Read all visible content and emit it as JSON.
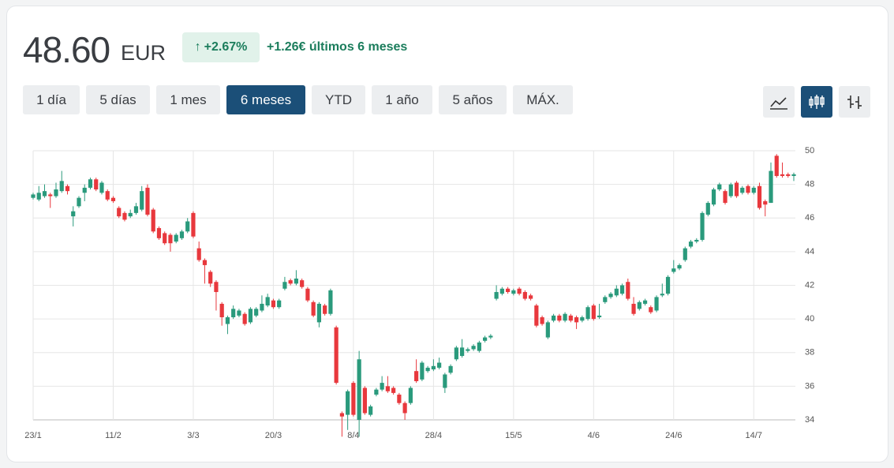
{
  "header": {
    "price": "48.60",
    "currency": "EUR",
    "change_pct": "+2.67%",
    "change_text": "+1.26€ últimos 6 meses"
  },
  "ranges": [
    "1 día",
    "5 días",
    "1 mes",
    "6 meses",
    "YTD",
    "1 año",
    "5 años",
    "MÁX."
  ],
  "chart_data": {
    "type": "candlestick",
    "up_color": "#2a9a7c",
    "down_color": "#e8383d",
    "grid": true,
    "categories": [
      "23/1",
      null,
      null,
      null,
      null,
      null,
      null,
      null,
      null,
      null,
      null,
      null,
      null,
      null,
      "11/2",
      null,
      null,
      null,
      null,
      null,
      null,
      null,
      null,
      null,
      null,
      null,
      null,
      null,
      "3/3",
      null,
      null,
      null,
      null,
      null,
      null,
      null,
      null,
      null,
      null,
      null,
      null,
      null,
      "20/3",
      null,
      null,
      null,
      null,
      null,
      null,
      null,
      null,
      null,
      null,
      null,
      null,
      null,
      "8/4",
      null,
      null,
      null,
      null,
      null,
      null,
      null,
      null,
      null,
      null,
      null,
      null,
      null,
      "28/4",
      null,
      null,
      null,
      null,
      null,
      null,
      null,
      null,
      null,
      null,
      null,
      null,
      null,
      "15/5",
      null,
      null,
      null,
      null,
      null,
      null,
      null,
      null,
      null,
      null,
      null,
      null,
      null,
      "4/6",
      null,
      null,
      null,
      null,
      null,
      null,
      null,
      null,
      null,
      null,
      null,
      null,
      null,
      "24/6",
      null,
      null,
      null,
      null,
      null,
      null,
      null,
      null,
      null,
      null,
      null,
      null,
      null,
      "14/7",
      null,
      null,
      null,
      null,
      null,
      null,
      null
    ],
    "open": [
      47.2,
      47.1,
      47.3,
      47.4,
      47.3,
      47.6,
      47.9,
      46.1,
      46.7,
      47.5,
      47.8,
      48.3,
      47.5,
      47.6,
      47.2,
      46.6,
      46.3,
      46.1,
      46.3,
      46.5,
      47.8,
      46.5,
      45.4,
      45.1,
      45.0,
      44.6,
      44.8,
      45.2,
      46.3,
      44.2,
      43.5,
      42.8,
      42.2,
      40.9,
      39.7,
      40.1,
      40.2,
      40.3,
      39.8,
      40.2,
      40.5,
      40.8,
      41.1,
      40.7,
      41.8,
      42.3,
      42.1,
      42.3,
      41.8,
      41.0,
      39.8,
      40.8,
      40.3,
      39.5,
      34.4,
      34.3,
      36.2,
      34.0,
      35.9,
      34.3,
      35.5,
      35.8,
      36.0,
      35.9,
      35.5,
      35.0,
      35.0,
      36.9,
      36.4,
      36.9,
      37.0,
      37.1,
      35.9,
      36.8,
      37.6,
      37.8,
      38.1,
      38.2,
      38.1,
      38.7,
      38.9,
      41.2,
      41.5,
      41.8,
      41.5,
      41.8,
      41.6,
      41.4,
      40.8,
      40.1,
      38.9,
      39.9,
      40.2,
      39.9,
      40.2,
      40.1,
      39.9,
      40.0,
      40.8,
      40.1,
      41.0,
      41.3,
      41.4,
      41.5,
      42.2,
      40.9,
      40.6,
      40.9,
      40.7,
      40.5,
      41.4,
      41.5,
      42.8,
      43.0,
      43.5,
      44.3,
      44.6,
      44.7,
      46.2,
      46.8,
      47.7,
      47.6,
      47.3,
      48.1,
      47.5,
      47.9,
      47.5,
      47.9,
      47.0,
      46.9,
      49.7,
      48.6,
      48.6,
      48.5
    ],
    "high": [
      47.5,
      47.9,
      48.0,
      47.5,
      48.1,
      48.8,
      48.0,
      46.7,
      47.3,
      48.0,
      48.4,
      48.4,
      48.2,
      47.7,
      47.3,
      46.7,
      46.4,
      46.5,
      46.9,
      47.9,
      48.0,
      46.6,
      45.5,
      45.2,
      45.1,
      45.1,
      45.3,
      46.0,
      46.4,
      44.6,
      43.6,
      42.9,
      42.3,
      41.0,
      40.2,
      40.8,
      40.6,
      40.4,
      40.7,
      40.7,
      41.4,
      41.5,
      41.2,
      41.2,
      42.5,
      42.4,
      42.9,
      42.4,
      41.9,
      41.1,
      41.0,
      40.9,
      41.8,
      39.6,
      34.5,
      35.8,
      36.3,
      38.1,
      36.0,
      34.9,
      35.9,
      36.6,
      36.6,
      36.0,
      35.6,
      35.1,
      36.0,
      37.6,
      37.5,
      37.2,
      37.6,
      37.7,
      36.8,
      37.3,
      38.4,
      38.8,
      38.3,
      38.5,
      38.7,
      39.0,
      39.1,
      42.0,
      41.9,
      41.9,
      41.8,
      41.9,
      41.7,
      41.5,
      40.9,
      40.2,
      39.9,
      40.3,
      40.3,
      40.4,
      40.3,
      40.2,
      40.2,
      40.8,
      40.9,
      40.9,
      41.4,
      41.6,
      42.0,
      42.1,
      42.4,
      41.3,
      41.1,
      41.2,
      40.8,
      41.4,
      42.1,
      42.6,
      43.5,
      43.3,
      44.3,
      44.7,
      44.8,
      46.4,
      47.0,
      47.8,
      48.1,
      47.7,
      48.1,
      48.2,
      47.9,
      48.0,
      47.9,
      48.1,
      47.1,
      49.3,
      49.8,
      49.3,
      48.7,
      48.7
    ],
    "low": [
      47.1,
      47.0,
      47.2,
      46.6,
      47.2,
      47.5,
      47.4,
      45.5,
      46.6,
      47.0,
      47.7,
      47.6,
      47.4,
      47.0,
      46.9,
      46.0,
      45.8,
      46.0,
      46.2,
      46.4,
      46.1,
      45.1,
      44.7,
      44.4,
      44.0,
      44.5,
      44.7,
      45.1,
      44.8,
      43.4,
      42.1,
      41.9,
      40.5,
      39.6,
      39.1,
      40.0,
      40.1,
      39.6,
      39.7,
      40.1,
      40.4,
      40.7,
      40.6,
      40.6,
      41.7,
      42.0,
      42.0,
      41.8,
      41.0,
      40.1,
      39.5,
      40.2,
      40.2,
      36.1,
      33.0,
      33.4,
      34.2,
      33.0,
      34.3,
      34.2,
      35.4,
      35.7,
      35.6,
      35.5,
      34.9,
      34.0,
      34.9,
      36.2,
      36.3,
      36.8,
      36.9,
      37.0,
      35.6,
      36.7,
      37.5,
      37.7,
      38.0,
      38.1,
      38.0,
      38.6,
      38.8,
      41.1,
      41.4,
      41.5,
      41.4,
      41.4,
      41.1,
      41.1,
      39.5,
      39.6,
      38.8,
      39.8,
      39.8,
      39.8,
      39.8,
      39.4,
      39.8,
      39.9,
      39.9,
      40.0,
      40.9,
      41.2,
      41.3,
      41.4,
      41.1,
      40.2,
      40.5,
      40.8,
      40.3,
      40.4,
      41.3,
      41.4,
      42.7,
      42.9,
      43.4,
      44.2,
      44.5,
      44.6,
      46.1,
      46.7,
      47.6,
      46.8,
      47.2,
      47.2,
      47.4,
      47.4,
      47.4,
      46.5,
      46.1,
      46.9,
      48.4,
      48.4,
      48.4,
      48.2
    ],
    "close": [
      47.4,
      47.5,
      47.6,
      47.3,
      47.7,
      48.2,
      47.6,
      46.4,
      47.2,
      47.8,
      48.3,
      47.7,
      48.1,
      47.1,
      47.0,
      46.1,
      45.9,
      46.3,
      46.7,
      47.6,
      46.2,
      45.2,
      44.8,
      44.5,
      44.5,
      45.0,
      45.2,
      45.8,
      44.9,
      43.5,
      43.2,
      42.1,
      41.6,
      40.1,
      40.1,
      40.6,
      40.5,
      39.7,
      40.6,
      40.6,
      40.9,
      41.3,
      40.7,
      41.1,
      42.2,
      42.1,
      42.4,
      41.9,
      41.1,
      40.2,
      40.9,
      40.3,
      41.7,
      36.2,
      34.2,
      35.7,
      34.3,
      37.6,
      34.4,
      34.8,
      35.8,
      36.2,
      35.7,
      35.6,
      35.0,
      34.4,
      35.9,
      36.3,
      37.4,
      37.1,
      37.2,
      37.4,
      36.7,
      37.2,
      38.3,
      38.3,
      38.2,
      38.4,
      38.6,
      38.9,
      39.0,
      41.6,
      41.8,
      41.6,
      41.7,
      41.5,
      41.2,
      41.2,
      39.6,
      39.7,
      39.8,
      40.2,
      39.9,
      40.3,
      39.9,
      39.8,
      40.1,
      40.7,
      40.0,
      40.2,
      41.3,
      41.5,
      41.8,
      42.0,
      41.2,
      40.3,
      41.0,
      41.1,
      40.4,
      41.3,
      41.5,
      42.5,
      43.0,
      43.2,
      44.2,
      44.6,
      44.7,
      46.3,
      46.9,
      47.7,
      48.0,
      46.9,
      48.0,
      47.3,
      47.8,
      47.5,
      47.8,
      46.6,
      46.8,
      48.8,
      48.5,
      48.5,
      48.5,
      48.6
    ],
    "ylim": [
      34,
      50
    ],
    "yticks": [
      34,
      36,
      38,
      40,
      42,
      44,
      46,
      48,
      50
    ]
  }
}
